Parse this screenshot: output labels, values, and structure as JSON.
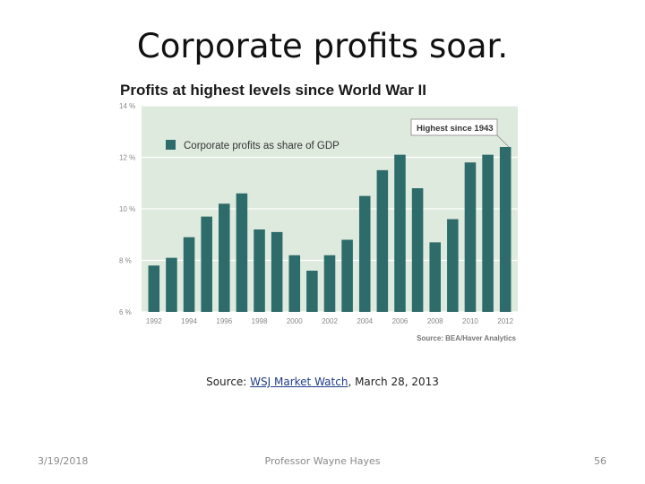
{
  "slide": {
    "title": "Corporate profits soar.",
    "source_prefix": "Source: ",
    "source_link": "WSJ Market Watch",
    "source_suffix": ", March 28, 2013"
  },
  "footer": {
    "date": "3/19/2018",
    "presenter": "Professor Wayne Hayes",
    "page": "56"
  },
  "chart_data": {
    "type": "bar",
    "title": "Profits at highest levels since World War II",
    "legend": "Corporate profits as share of GDP",
    "legend_position": "top-left",
    "annotation": "Highest since 1943",
    "source": "Source: BEA/Haver Analytics",
    "categories": [
      "1992",
      "1993",
      "1994",
      "1995",
      "1996",
      "1997",
      "1998",
      "1999",
      "2000",
      "2001",
      "2002",
      "2003",
      "2004",
      "2005",
      "2006",
      "2007",
      "2008",
      "2009",
      "2010",
      "2011",
      "2012"
    ],
    "values": [
      7.8,
      8.1,
      8.9,
      9.7,
      10.2,
      10.6,
      9.2,
      9.1,
      8.2,
      7.6,
      8.2,
      8.8,
      10.5,
      11.5,
      12.1,
      10.8,
      8.7,
      9.6,
      11.8,
      12.1,
      12.4
    ],
    "x_tick_labels": [
      "1992",
      "1994",
      "1996",
      "1998",
      "2000",
      "2002",
      "2004",
      "2006",
      "2008",
      "2010",
      "2012"
    ],
    "y_tick_labels": [
      "14 %",
      "12 %",
      "10 %",
      "8 %",
      "6 %"
    ],
    "y_ticks": [
      14,
      12,
      10,
      8,
      6
    ],
    "ylim": [
      6,
      14
    ],
    "grid": true,
    "colors": {
      "bar": "#2e6b6b",
      "plot_bg": "#dfeade",
      "grid": "#ffffff"
    }
  }
}
